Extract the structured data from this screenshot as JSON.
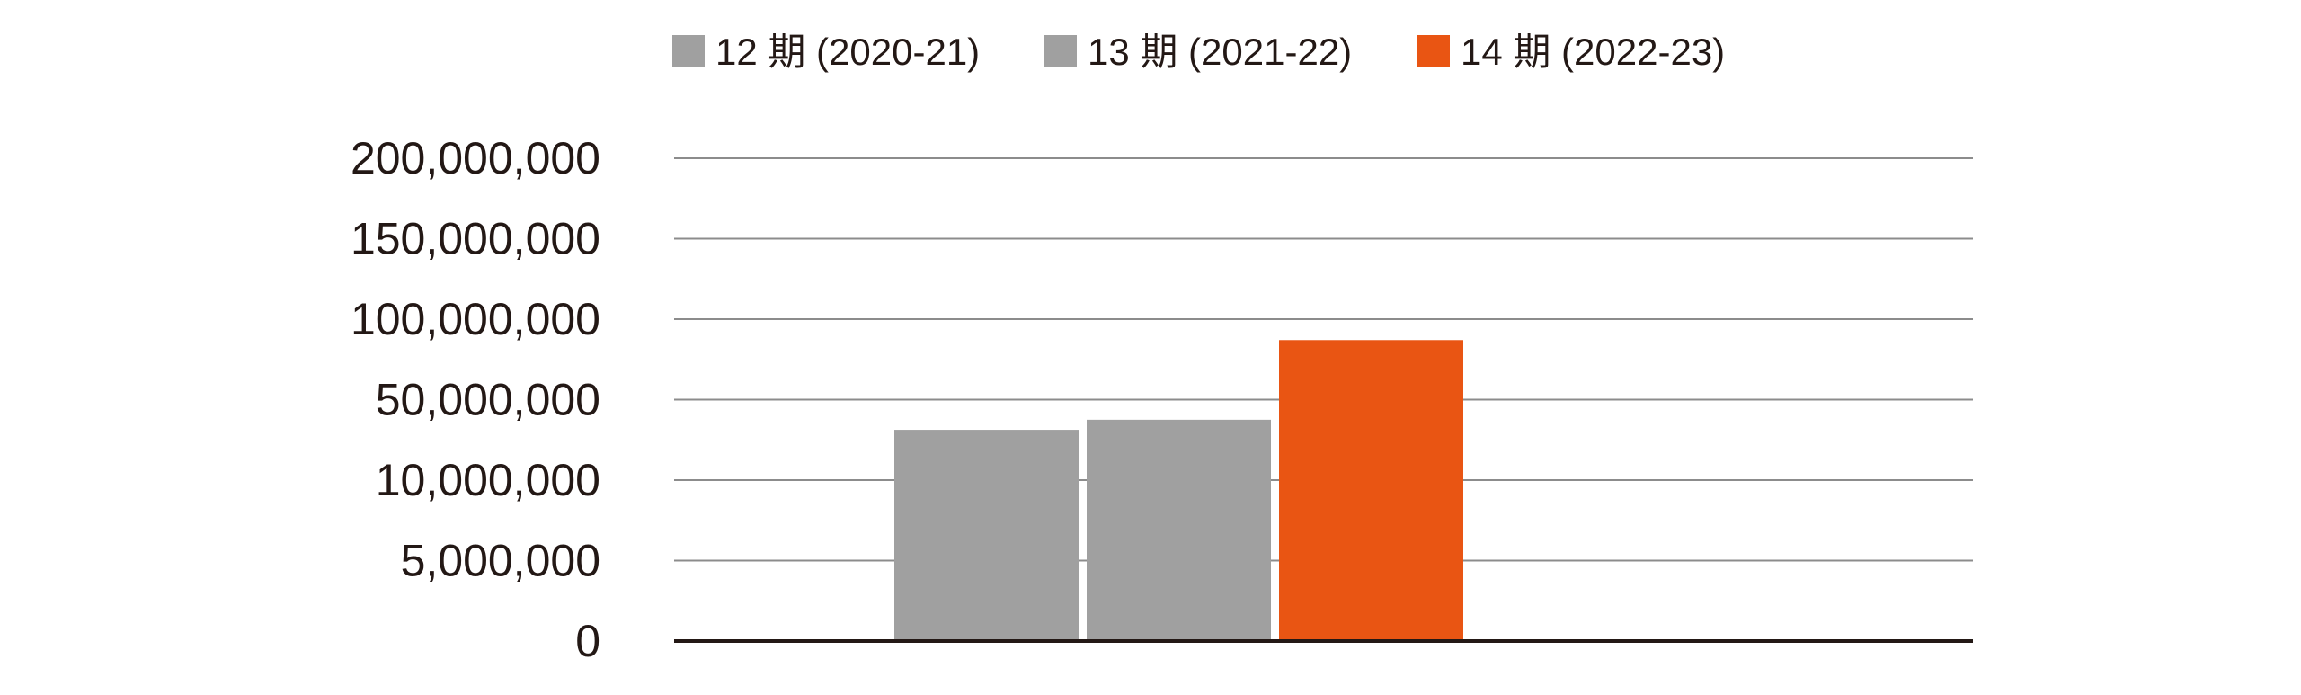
{
  "chart_data": {
    "type": "bar",
    "title": "",
    "xlabel": "",
    "ylabel": "",
    "y_tick_labels": [
      "0",
      "5,000,000",
      "10,000,000",
      "50,000,000",
      "100,000,000",
      "150,000,000",
      "200,000,000"
    ],
    "y_tick_values": [
      0,
      5000000,
      10000000,
      50000000,
      100000000,
      150000000,
      200000000
    ],
    "y_scale": "non-linear (evenly spaced ticks)",
    "ylim": [
      0,
      200000000
    ],
    "grid": true,
    "legend_position": "top-center",
    "categories": [
      ""
    ],
    "series": [
      {
        "name": "12 期 (2020-21)",
        "color": "#a0a0a0",
        "values": [
          35000000
        ]
      },
      {
        "name": "13 期 (2021-22)",
        "color": "#a0a0a0",
        "values": [
          40000000
        ]
      },
      {
        "name": "14 期 (2022-23)",
        "color": "#e95513",
        "values": [
          87000000
        ]
      }
    ]
  },
  "colors": {
    "gridline": "#8c8c8c",
    "baseline": "#231815",
    "text": "#231815"
  }
}
